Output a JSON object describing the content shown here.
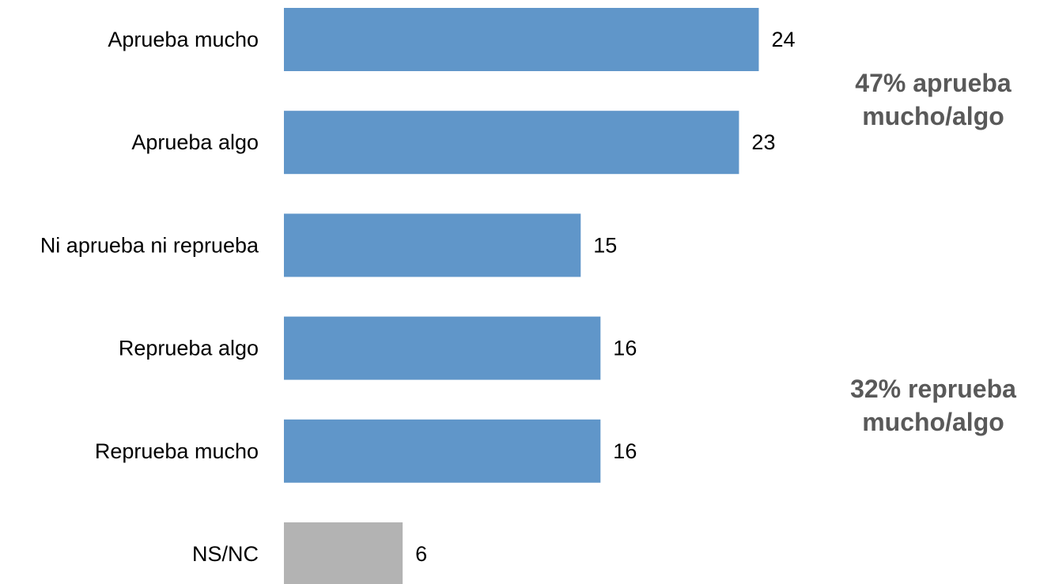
{
  "chart_data": {
    "type": "bar",
    "orientation": "horizontal",
    "categories": [
      "Aprueba mucho",
      "Aprueba algo",
      "Ni aprueba ni reprueba",
      "Reprueba algo",
      "Reprueba mucho",
      "NS/NC"
    ],
    "values": [
      24,
      23,
      15,
      16,
      16,
      6
    ],
    "bar_colors": [
      "#6096c9",
      "#6096c9",
      "#6096c9",
      "#6096c9",
      "#6096c9",
      "#b3b3b3"
    ],
    "xlim": [
      0,
      26.5
    ],
    "grid": false,
    "legend": "none",
    "annotations": [
      {
        "line1": "47% aprueba",
        "line2": "mucho/algo"
      },
      {
        "line1": "32% reprueba",
        "line2": "mucho/algo"
      }
    ]
  }
}
